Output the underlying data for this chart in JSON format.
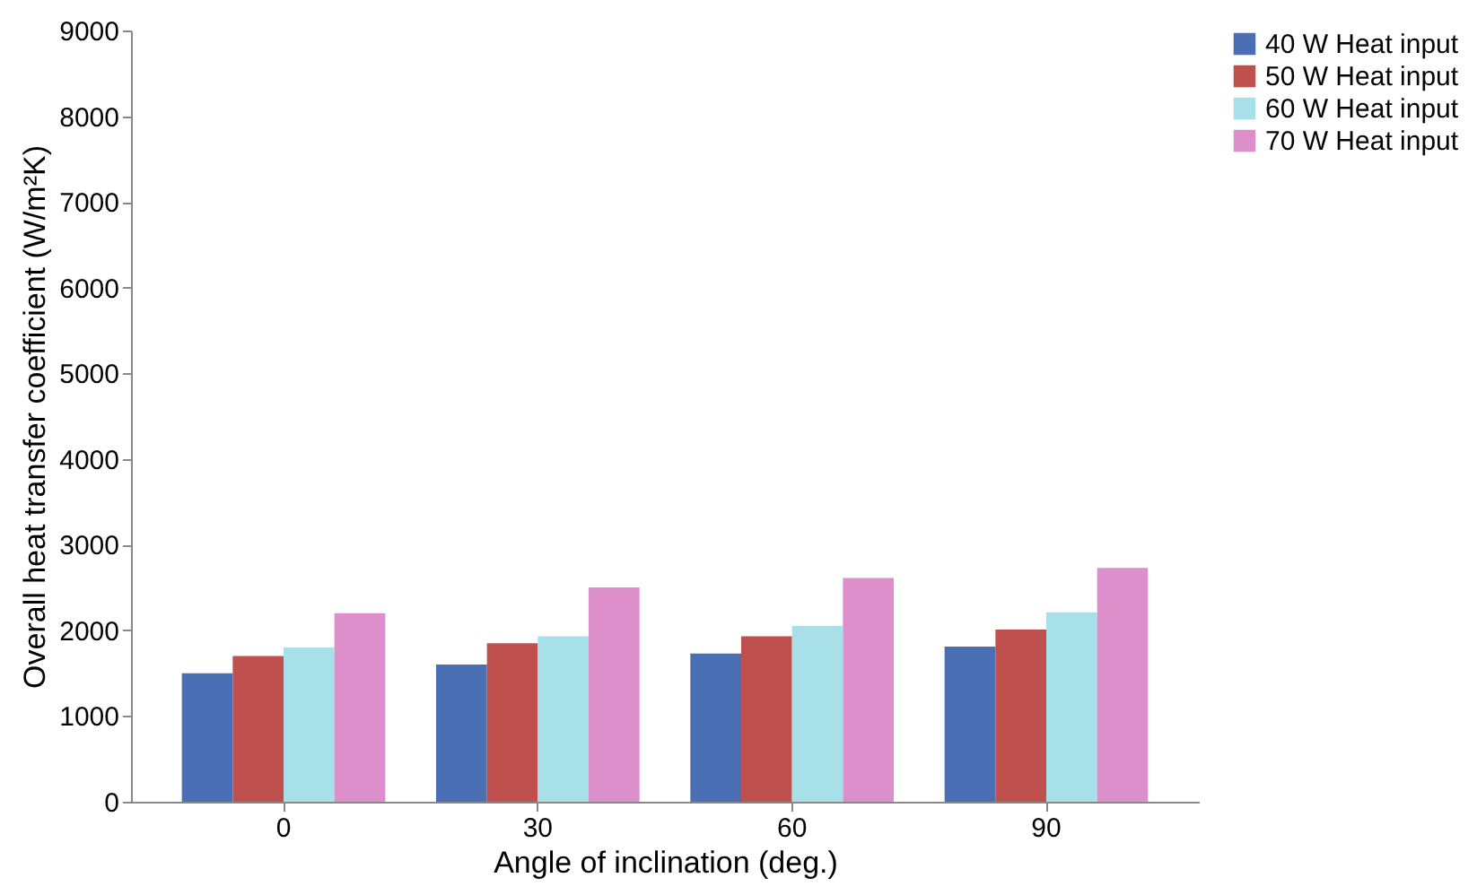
{
  "chart_data": {
    "type": "bar",
    "xlabel": "Angle of inclination  (deg.)",
    "ylabel": "Overall heat transfer coefficient (W/m²K)",
    "categories": [
      "0",
      "30",
      "60",
      "90"
    ],
    "series": [
      {
        "name": "40 W Heat input",
        "color": "#4a6fb5",
        "values": [
          1500,
          1600,
          1730,
          1810
        ]
      },
      {
        "name": "50 W Heat input",
        "color": "#c0504d",
        "values": [
          1700,
          1850,
          1930,
          2010
        ]
      },
      {
        "name": "60 W Heat input",
        "color": "#a8e0ea",
        "values": [
          1800,
          1930,
          2050,
          2210
        ]
      },
      {
        "name": "70 W Heat input",
        "color": "#dd8fcc",
        "values": [
          2200,
          2500,
          2610,
          2730
        ]
      }
    ],
    "ylim": [
      0,
      9000
    ],
    "yticks": [
      0,
      1000,
      2000,
      3000,
      4000,
      5000,
      6000,
      7000,
      8000,
      9000
    ],
    "grid": false,
    "legend": "right"
  }
}
